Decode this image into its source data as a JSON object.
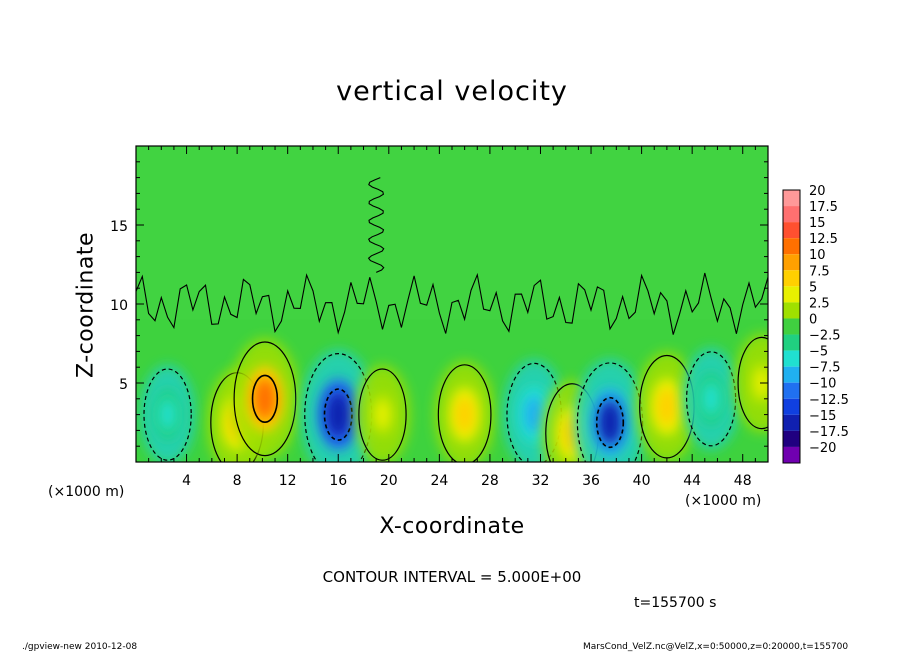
{
  "chart_data": {
    "type": "heatmap",
    "title": "vertical velocity",
    "xlabel": "X-coordinate",
    "ylabel": "Z-coordinate",
    "x_unit_label": "(×1000 m)",
    "xlim": [
      0,
      50
    ],
    "ylim": [
      0,
      20
    ],
    "x_ticks": [
      "4",
      "8",
      "12",
      "16",
      "20",
      "24",
      "28",
      "32",
      "36",
      "40",
      "44",
      "48"
    ],
    "x_tick_values": [
      4,
      8,
      12,
      16,
      20,
      24,
      28,
      32,
      36,
      40,
      44,
      48
    ],
    "y_ticks": [
      "5",
      "10",
      "15"
    ],
    "y_tick_values": [
      5,
      10,
      15
    ],
    "colorbar": {
      "labels": [
        "20",
        "17.5",
        "15",
        "12.5",
        "10",
        "7.5",
        "5",
        "2.5",
        "0",
        "−2.5",
        "−5",
        "−7.5",
        "−10",
        "−12.5",
        "−15",
        "−17.5",
        "−20"
      ],
      "values": [
        20,
        17.5,
        15,
        12.5,
        10,
        7.5,
        5,
        2.5,
        0,
        -2.5,
        -5,
        -7.5,
        -10,
        -12.5,
        -15,
        -17.5,
        -20
      ],
      "colors": [
        "#ff9999",
        "#ff7070",
        "#ff5030",
        "#ff7000",
        "#ffa000",
        "#ffd000",
        "#e8f000",
        "#a0e000",
        "#40d040",
        "#20d080",
        "#20e0d0",
        "#20b0f0",
        "#2070f0",
        "#1040e0",
        "#1020b0",
        "#200080",
        "#7000b0"
      ]
    },
    "cells": [
      {
        "x": 2.5,
        "z": 3.0,
        "value": -4
      },
      {
        "x": 8.0,
        "z": 2.5,
        "value": 7
      },
      {
        "x": 10.2,
        "z": 4.0,
        "value": 12
      },
      {
        "x": 16.0,
        "z": 3.0,
        "value": -15
      },
      {
        "x": 19.5,
        "z": 3.0,
        "value": 4
      },
      {
        "x": 26.0,
        "z": 3.0,
        "value": 7
      },
      {
        "x": 31.5,
        "z": 3.0,
        "value": -8
      },
      {
        "x": 34.5,
        "z": 1.8,
        "value": 7
      },
      {
        "x": 37.5,
        "z": 2.5,
        "value": -14
      },
      {
        "x": 42.0,
        "z": 3.5,
        "value": 8
      },
      {
        "x": 45.5,
        "z": 4.0,
        "value": -5
      },
      {
        "x": 49.5,
        "z": 5.0,
        "value": 4
      }
    ]
  },
  "text": {
    "contour_interval": "CONTOUR INTERVAL = 5.000E+00",
    "time": "t=155700 s",
    "footer_left": "./gpview-new   2010-12-08",
    "footer_right": "MarsCond_VelZ.nc@VelZ,x=0:50000,z=0:20000,t=155700"
  }
}
